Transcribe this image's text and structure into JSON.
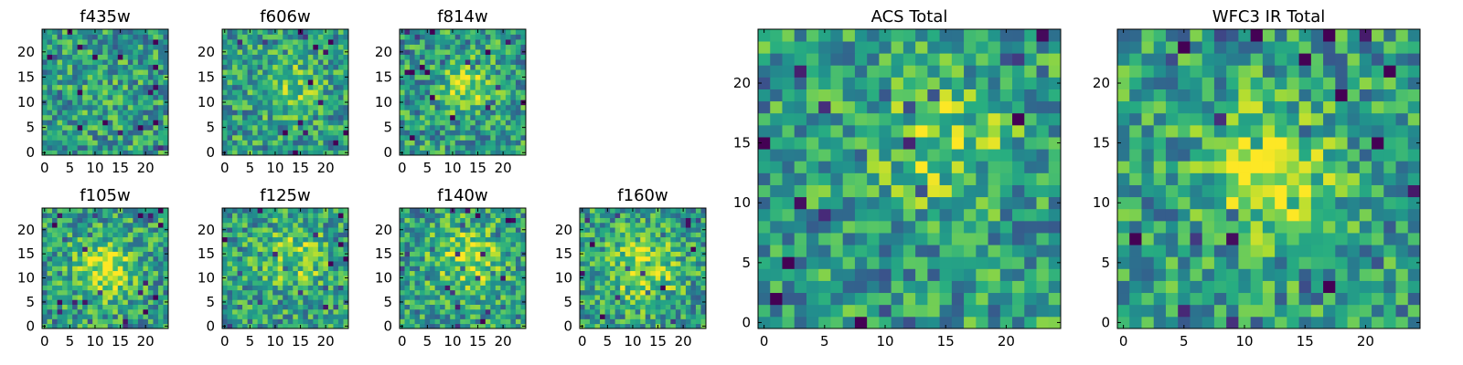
{
  "chart_data": [
    {
      "type": "heatmap",
      "title": "f435w",
      "grid_size": 25,
      "xlim": [
        0,
        24
      ],
      "ylim": [
        0,
        24
      ],
      "xticks": [
        "0",
        "5",
        "10",
        "15",
        "20"
      ],
      "yticks": [
        "0",
        "5",
        "10",
        "15",
        "20"
      ],
      "colormap": "viridis"
    },
    {
      "type": "heatmap",
      "title": "f606w",
      "grid_size": 25,
      "xlim": [
        0,
        24
      ],
      "ylim": [
        0,
        24
      ],
      "xticks": [
        "0",
        "5",
        "10",
        "15",
        "20"
      ],
      "yticks": [
        "0",
        "5",
        "10",
        "15",
        "20"
      ],
      "colormap": "viridis"
    },
    {
      "type": "heatmap",
      "title": "f814w",
      "grid_size": 25,
      "xlim": [
        0,
        24
      ],
      "ylim": [
        0,
        24
      ],
      "xticks": [
        "0",
        "5",
        "10",
        "15",
        "20"
      ],
      "yticks": [
        "0",
        "5",
        "10",
        "15",
        "20"
      ],
      "colormap": "viridis"
    },
    {
      "type": "heatmap",
      "title": "f105w",
      "grid_size": 25,
      "xlim": [
        0,
        24
      ],
      "ylim": [
        0,
        24
      ],
      "xticks": [
        "0",
        "5",
        "10",
        "15",
        "20"
      ],
      "yticks": [
        "0",
        "5",
        "10",
        "15",
        "20"
      ],
      "colormap": "viridis"
    },
    {
      "type": "heatmap",
      "title": "f125w",
      "grid_size": 25,
      "xlim": [
        0,
        24
      ],
      "ylim": [
        0,
        24
      ],
      "xticks": [
        "0",
        "5",
        "10",
        "15",
        "20"
      ],
      "yticks": [
        "0",
        "5",
        "10",
        "15",
        "20"
      ],
      "colormap": "viridis"
    },
    {
      "type": "heatmap",
      "title": "f140w",
      "grid_size": 25,
      "xlim": [
        0,
        24
      ],
      "ylim": [
        0,
        24
      ],
      "xticks": [
        "0",
        "5",
        "10",
        "15",
        "20"
      ],
      "yticks": [
        "0",
        "5",
        "10",
        "15",
        "20"
      ],
      "colormap": "viridis"
    },
    {
      "type": "heatmap",
      "title": "f160w",
      "grid_size": 25,
      "xlim": [
        0,
        24
      ],
      "ylim": [
        0,
        24
      ],
      "xticks": [
        "0",
        "5",
        "10",
        "15",
        "20"
      ],
      "yticks": [
        "0",
        "5",
        "10",
        "15",
        "20"
      ],
      "colormap": "viridis"
    },
    {
      "type": "heatmap",
      "title": "ACS Total",
      "grid_size": 25,
      "xlim": [
        0,
        24
      ],
      "ylim": [
        0,
        24
      ],
      "xticks": [
        "0",
        "5",
        "10",
        "15",
        "20"
      ],
      "yticks": [
        "0",
        "5",
        "10",
        "15",
        "20"
      ],
      "colormap": "viridis"
    },
    {
      "type": "heatmap",
      "title": "WFC3 IR Total",
      "grid_size": 25,
      "xlim": [
        0,
        24
      ],
      "ylim": [
        0,
        24
      ],
      "xticks": [
        "0",
        "5",
        "10",
        "15",
        "20"
      ],
      "yticks": [
        "0",
        "5",
        "10",
        "15",
        "20"
      ],
      "colormap": "viridis"
    }
  ],
  "colors": [
    "#440154",
    "#3b528b",
    "#21918c",
    "#5ec962",
    "#fde725"
  ]
}
